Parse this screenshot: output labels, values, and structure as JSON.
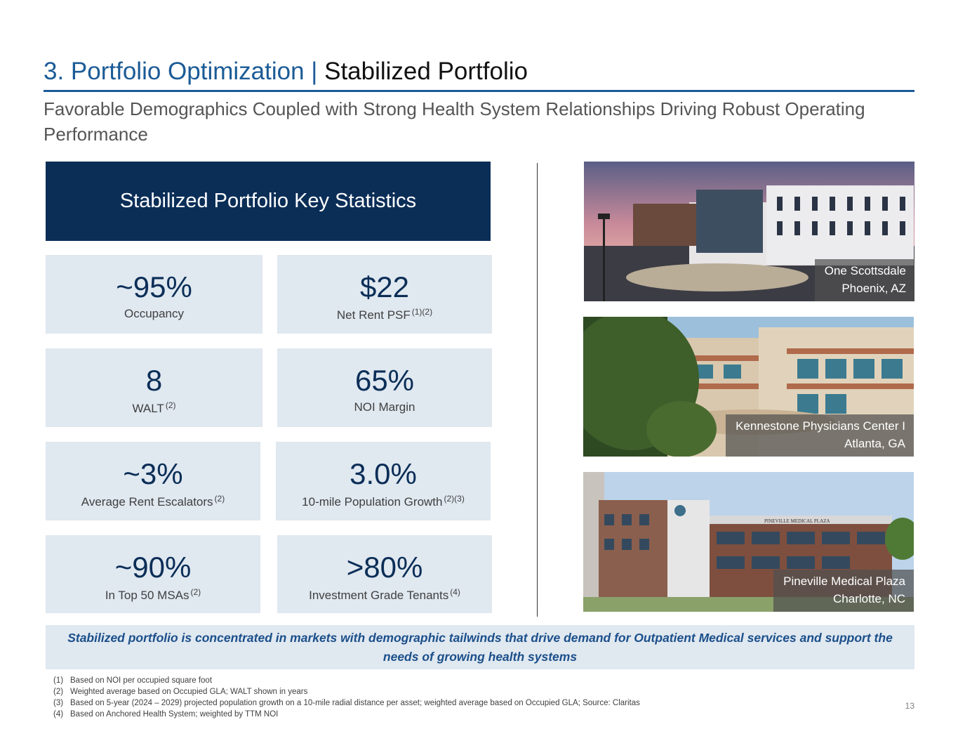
{
  "title": {
    "part1": "3. Portfolio Optimization |",
    "part2": "Stabilized Portfolio"
  },
  "subtitle": "Favorable Demographics Coupled with Strong Health System Relationships Driving Robust Operating Performance",
  "stats_header": "Stabilized Portfolio Key Statistics",
  "stats": [
    {
      "value": "~95%",
      "label": "Occupancy",
      "note": ""
    },
    {
      "value": "$22",
      "label": "Net Rent PSF",
      "note": "(1)(2)"
    },
    {
      "value": "8",
      "label": "WALT",
      "note": "(2)"
    },
    {
      "value": "65%",
      "label": "NOI Margin",
      "note": ""
    },
    {
      "value": "~3%",
      "label": "Average Rent Escalators",
      "note": "(2)"
    },
    {
      "value": "3.0%",
      "label": "10-mile Population Growth",
      "note": "(2)(3)"
    },
    {
      "value": "~90%",
      "label": "In Top 50 MSAs",
      "note": "(2)"
    },
    {
      "value": ">80%",
      "label": "Investment Grade Tenants",
      "note": "(4)"
    }
  ],
  "photos": [
    {
      "name": "One Scottsdale",
      "location": "Phoenix, AZ"
    },
    {
      "name": "Kennestone Physicians Center I",
      "location": "Atlanta, GA"
    },
    {
      "name": "Pineville Medical Plaza",
      "location": "Charlotte, NC",
      "sign": "PINEVILLE MEDICAL PLAZA"
    }
  ],
  "callout": "Stabilized portfolio is concentrated in markets with demographic tailwinds that drive demand for Outpatient Medical services and support the needs of growing health systems",
  "footnotes": [
    {
      "num": "(1)",
      "text": "Based on NOI per occupied square foot"
    },
    {
      "num": "(2)",
      "text": "Weighted average based on Occupied GLA; WALT shown in years"
    },
    {
      "num": "(3)",
      "text": "Based on 5-year (2024 – 2029) projected population growth on a 10-mile radial distance per asset; weighted average based on Occupied GLA; Source: Claritas"
    },
    {
      "num": "(4)",
      "text": "Based on Anchored Health System; weighted by TTM NOI"
    }
  ],
  "page_number": "13",
  "colors": {
    "navy": "#0b2e57",
    "title_blue": "#1b5b96",
    "panel": "#e0e8f0"
  }
}
